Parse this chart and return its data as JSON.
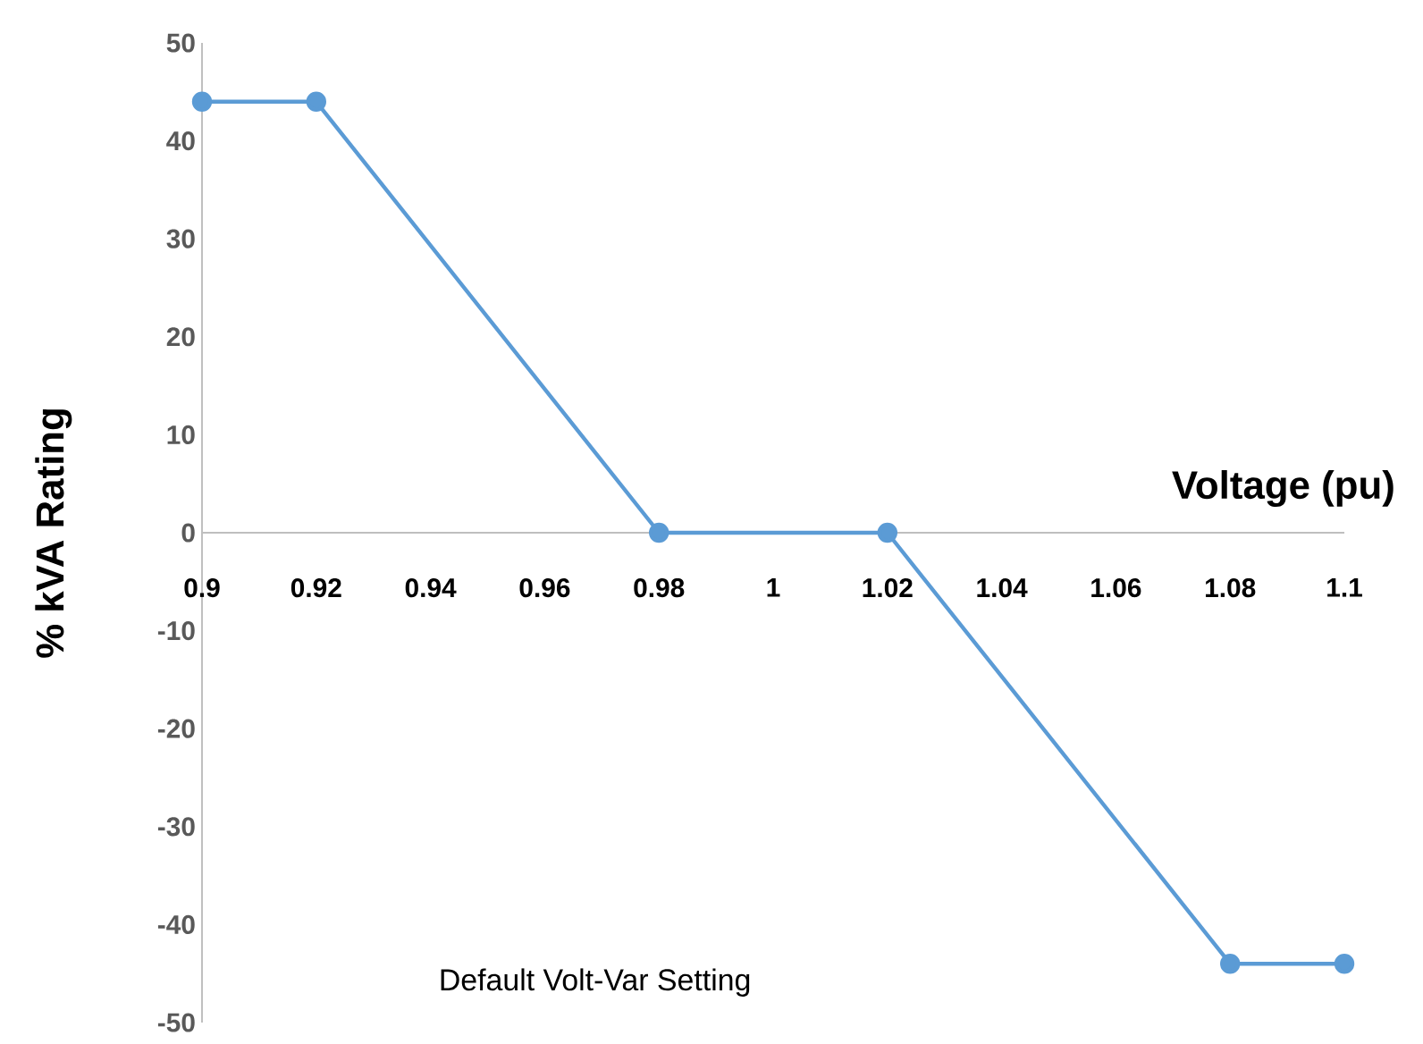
{
  "chart_data": {
    "type": "line",
    "title": "Default Volt-Var Setting",
    "xlabel": "Voltage (pu)",
    "ylabel": "% kVA Rating",
    "x": [
      0.9,
      0.92,
      0.98,
      1.02,
      1.08,
      1.1
    ],
    "series": [
      {
        "color": "#5b9bd5",
        "values": [
          44,
          44,
          0,
          0,
          -44,
          -44
        ]
      }
    ],
    "xlim": [
      0.9,
      1.1
    ],
    "xticks": [
      0.9,
      0.92,
      0.94,
      0.96,
      0.98,
      1,
      1.02,
      1.04,
      1.06,
      1.08,
      1.1
    ],
    "ylim": [
      -50,
      50
    ],
    "yticks": [
      -50,
      -40,
      -30,
      -20,
      -10,
      0,
      10,
      20,
      30,
      40,
      50
    ],
    "grid": false,
    "marker": "circle",
    "line_style": "solid"
  }
}
